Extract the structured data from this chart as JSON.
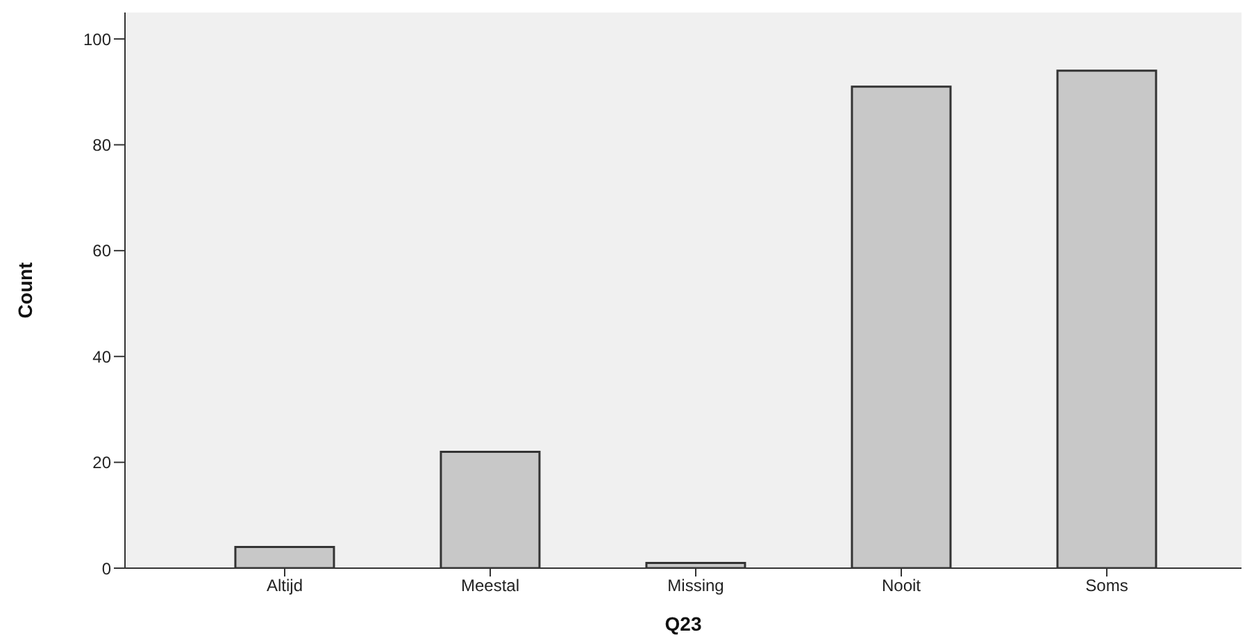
{
  "chart_data": {
    "type": "bar",
    "xlabel": "Q23",
    "ylabel": "Count",
    "categories": [
      "Altijd",
      "Meestal",
      "Missing",
      "Nooit",
      "Soms"
    ],
    "values": [
      4,
      22,
      1,
      91,
      94
    ],
    "color": "#c8c8c8",
    "ylim": [
      0,
      105
    ],
    "yticks": [
      0,
      20,
      40,
      60,
      80,
      100
    ],
    "grid": false
  }
}
